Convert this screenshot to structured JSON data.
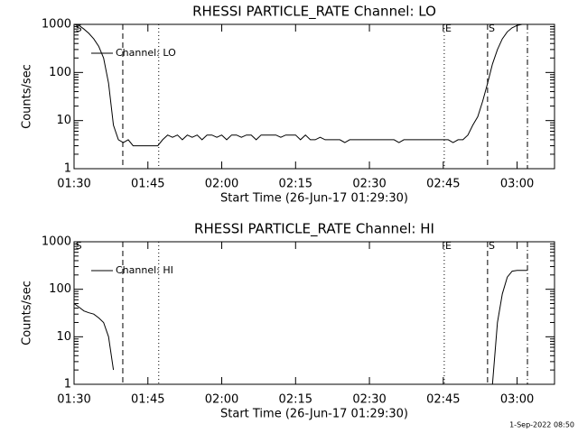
{
  "chart_data": [
    {
      "type": "line",
      "title": "RHESSI PARTICLE_RATE Channel: LO",
      "xlabel": "Start Time (26-Jun-17 01:29:30)",
      "ylabel": "Counts/sec",
      "log": true,
      "xlim": [
        0,
        97.6
      ],
      "ylim": [
        1,
        1000
      ],
      "yticks": [
        1,
        10,
        100,
        1000
      ],
      "xticks": [
        {
          "value": 0,
          "label": "01:30"
        },
        {
          "value": 15,
          "label": "01:45"
        },
        {
          "value": 30,
          "label": "02:00"
        },
        {
          "value": 45,
          "label": "02:15"
        },
        {
          "value": 60,
          "label": "02:30"
        },
        {
          "value": 75,
          "label": "02:45"
        },
        {
          "value": 90,
          "label": "03:00"
        }
      ],
      "legend": "upper left",
      "color": "#000000",
      "markers": [
        {
          "x": 9.9,
          "style": "dashed"
        },
        {
          "x": 17.2,
          "style": "dotted"
        },
        {
          "x": 75.2,
          "style": "dotted"
        },
        {
          "x": 84.0,
          "style": "dashed"
        },
        {
          "x": 92.1,
          "style": "dashdot"
        }
      ],
      "annotations": [
        {
          "text": "S",
          "x": 0.3
        },
        {
          "text": "E",
          "x": 75.4
        },
        {
          "text": "S",
          "x": 84.2
        }
      ],
      "series": [
        {
          "name": "Channel: LO",
          "color": "#000000",
          "x": [
            0,
            1,
            2,
            3,
            4,
            5,
            6,
            7,
            8,
            9,
            10,
            11,
            12,
            13,
            14,
            15,
            16,
            17,
            18,
            19,
            20,
            21,
            22,
            23,
            24,
            25,
            26,
            27,
            28,
            29,
            30,
            31,
            32,
            33,
            34,
            35,
            36,
            37,
            38,
            39,
            40,
            41,
            42,
            43,
            44,
            45,
            46,
            47,
            48,
            49,
            50,
            51,
            52,
            53,
            54,
            55,
            56,
            57,
            58,
            59,
            60,
            61,
            62,
            63,
            64,
            65,
            66,
            67,
            68,
            69,
            70,
            71,
            72,
            73,
            74,
            75,
            76,
            77,
            78,
            79,
            80,
            81,
            82,
            83,
            84,
            85,
            86,
            87,
            88,
            89,
            90,
            91,
            92
          ],
          "values": [
            1000,
            950,
            800,
            650,
            500,
            350,
            200,
            60,
            8,
            4,
            3.5,
            4,
            3,
            3,
            3,
            3,
            3,
            3,
            4,
            5,
            4.5,
            5,
            4,
            5,
            4.5,
            5,
            4,
            5,
            5,
            4.5,
            5,
            4,
            5,
            5,
            4.5,
            5,
            5,
            4,
            5,
            5,
            5,
            5,
            4.5,
            5,
            5,
            5,
            4,
            5,
            4,
            4,
            4.5,
            4,
            4,
            4,
            4,
            3.5,
            4,
            4,
            4,
            4,
            4,
            4,
            4,
            4,
            4,
            4,
            3.5,
            4,
            4,
            4,
            4,
            4,
            4,
            4,
            4,
            4,
            4,
            3.5,
            4,
            4,
            5,
            8,
            12,
            25,
            60,
            150,
            300,
            500,
            700,
            850,
            950,
            1000,
            1000
          ]
        }
      ]
    },
    {
      "type": "line",
      "title": "RHESSI PARTICLE_RATE Channel: HI",
      "xlabel": "Start Time (26-Jun-17 01:29:30)",
      "ylabel": "Counts/sec",
      "log": true,
      "xlim": [
        0,
        97.6
      ],
      "ylim": [
        1,
        1000
      ],
      "yticks": [
        1,
        10,
        100,
        1000
      ],
      "xticks": [
        {
          "value": 0,
          "label": "01:30"
        },
        {
          "value": 15,
          "label": "01:45"
        },
        {
          "value": 30,
          "label": "02:00"
        },
        {
          "value": 45,
          "label": "02:15"
        },
        {
          "value": 60,
          "label": "02:30"
        },
        {
          "value": 75,
          "label": "02:45"
        },
        {
          "value": 90,
          "label": "03:00"
        }
      ],
      "legend": "upper left",
      "color": "#000000",
      "markers": [
        {
          "x": 9.9,
          "style": "dashed"
        },
        {
          "x": 17.2,
          "style": "dotted"
        },
        {
          "x": 75.2,
          "style": "dotted"
        },
        {
          "x": 84.0,
          "style": "dashed"
        },
        {
          "x": 92.1,
          "style": "dashdot"
        }
      ],
      "annotations": [
        {
          "text": "S",
          "x": 0.3
        },
        {
          "text": "E",
          "x": 75.4
        },
        {
          "text": "S",
          "x": 84.2
        }
      ],
      "series": [
        {
          "name": "Channel: HI",
          "color": "#000000",
          "x": [
            0,
            1,
            2,
            3,
            4,
            5,
            6,
            7,
            8,
            8.5,
            85,
            86,
            87,
            88,
            89,
            90,
            91,
            92
          ],
          "values": [
            50,
            42,
            35,
            32,
            30,
            25,
            20,
            10,
            2,
            null,
            1,
            20,
            80,
            180,
            240,
            250,
            250,
            250
          ]
        }
      ]
    }
  ],
  "footer": "1-Sep-2022 08:50"
}
